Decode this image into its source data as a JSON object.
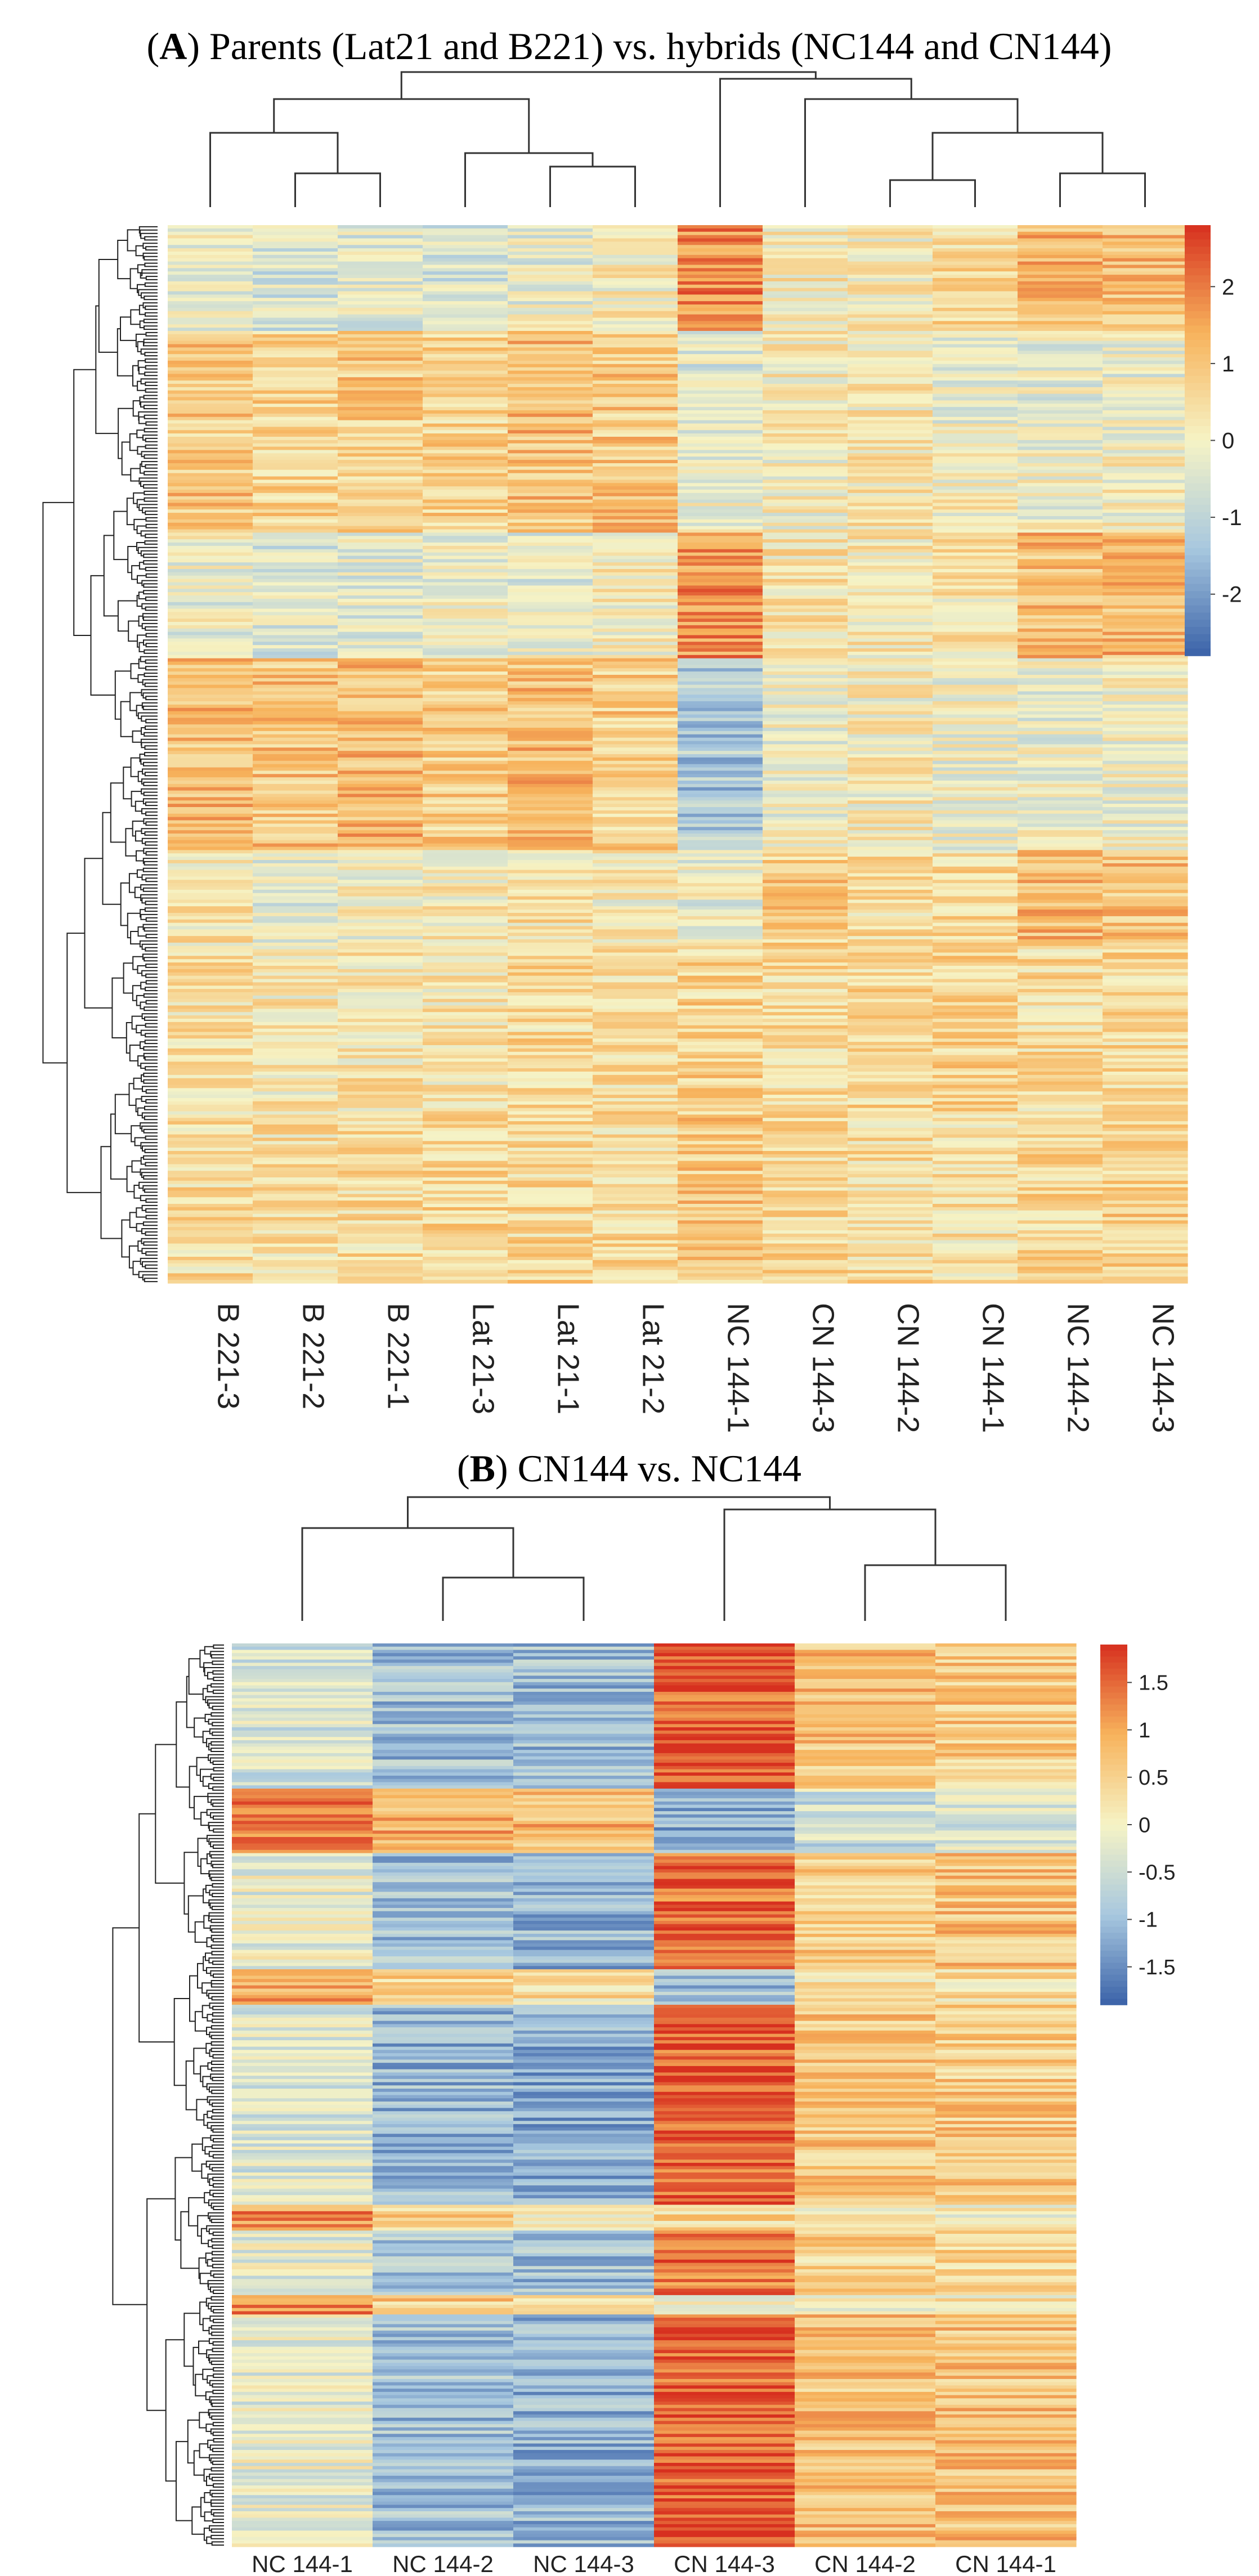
{
  "figure": {
    "panels": [
      {
        "id": "A",
        "title_letter": "A",
        "title_rest": ") Parents (Lat21 and B221) vs. hybrids (NC144 and CN144)",
        "colorbar_ticks": [
          "2",
          "1",
          "0",
          "-1",
          "-2"
        ]
      },
      {
        "id": "B",
        "title_letter": "B",
        "title_rest": ") CN144 vs. NC144",
        "colorbar_ticks": [
          "1.5",
          "1",
          "0.5",
          "0",
          "-0.5",
          "-1",
          "-1.5"
        ]
      }
    ]
  },
  "colors": {
    "low": "#3a62a8",
    "low_mid": "#a8c8df",
    "mid": "#f6f3c5",
    "high_mid": "#f7b35c",
    "high": "#d7301f"
  },
  "chart_data": [
    {
      "type": "heatmap",
      "title": "(A) Parents (Lat21 and B221) vs. hybrids (NC144 and CN144)",
      "columns": [
        "B 221-3",
        "B 221-2",
        "B 221-1",
        "Lat 21-3",
        "Lat 21-1",
        "Lat 21-2",
        "NC 144-1",
        "CN 144-3",
        "CN 144-2",
        "CN 144-1",
        "NC 144-2",
        "NC 144-3"
      ],
      "value_range": [
        -2.8,
        2.8
      ],
      "colorbar_ticks": [
        2,
        1,
        0,
        -1,
        -2
      ],
      "column_dendrogram": "((B 221-3,(B 221-2,B 221-1)),(Lat 21-3,(Lat 21-1,Lat 21-2))),(NC 144-1,(CN 144-3,((CN 144-2,CN 144-1),(NC 144-2,NC 144-3))))",
      "row_blocks": [
        {
          "rows": 0.1,
          "values": [
            -0.3,
            -0.6,
            -0.4,
            -0.5,
            -0.3,
            0.1,
            1.8,
            0.2,
            0.1,
            0.5,
            1.2,
            1.1
          ]
        },
        {
          "rows": 0.1,
          "values": [
            0.9,
            0.8,
            0.9,
            0.7,
            1.1,
            0.9,
            -0.4,
            0.1,
            0.2,
            -0.2,
            -0.3,
            -0.2
          ]
        },
        {
          "rows": 0.09,
          "values": [
            1.0,
            0.7,
            0.8,
            0.8,
            1.0,
            1.0,
            -0.1,
            0.0,
            0.3,
            0.1,
            -0.1,
            0.0
          ]
        },
        {
          "rows": 0.12,
          "values": [
            -0.2,
            -0.5,
            -0.3,
            -0.2,
            -0.3,
            0.1,
            1.7,
            0.3,
            0.2,
            0.3,
            1.1,
            1.2
          ]
        },
        {
          "rows": 0.18,
          "values": [
            1.1,
            1.0,
            1.2,
            0.8,
            1.1,
            0.8,
            -1.3,
            -0.2,
            0.1,
            -0.1,
            -0.2,
            -0.1
          ]
        },
        {
          "rows": 0.09,
          "values": [
            0.3,
            -0.3,
            0.0,
            0.2,
            0.4,
            0.1,
            -0.2,
            0.8,
            0.4,
            0.5,
            1.1,
            1.0
          ]
        },
        {
          "rows": 0.16,
          "values": [
            0.4,
            0.2,
            0.3,
            0.3,
            0.6,
            0.5,
            0.7,
            0.5,
            0.6,
            0.7,
            0.5,
            0.6
          ]
        },
        {
          "rows": 0.16,
          "values": [
            0.5,
            0.4,
            0.5,
            0.7,
            0.6,
            0.5,
            0.9,
            0.6,
            0.5,
            0.4,
            0.6,
            0.8
          ]
        }
      ]
    },
    {
      "type": "heatmap",
      "title": "(B) CN144 vs. NC144",
      "columns": [
        "NC 144-1",
        "NC 144-2",
        "NC 144-3",
        "CN 144-3",
        "CN 144-2",
        "CN 144-1"
      ],
      "value_range": [
        -1.9,
        1.9
      ],
      "colorbar_ticks": [
        1.5,
        1,
        0.5,
        0,
        -0.5,
        -1,
        -1.5
      ],
      "column_dendrogram": "(NC 144-1,(NC 144-2,NC 144-3)),(CN 144-3,(CN 144-2,CN 144-1))",
      "row_blocks": [
        {
          "rows": 0.16,
          "values": [
            -0.4,
            -1.0,
            -1.0,
            1.6,
            0.7,
            0.6
          ]
        },
        {
          "rows": 0.07,
          "values": [
            1.3,
            0.9,
            0.8,
            -1.2,
            -0.5,
            -0.3
          ]
        },
        {
          "rows": 0.13,
          "values": [
            -0.2,
            -1.0,
            -1.1,
            1.5,
            0.6,
            0.7
          ]
        },
        {
          "rows": 0.04,
          "values": [
            1.0,
            0.5,
            0.3,
            -1.0,
            0.2,
            0.3
          ]
        },
        {
          "rows": 0.22,
          "values": [
            -0.3,
            -1.1,
            -1.2,
            1.6,
            0.6,
            0.6
          ]
        },
        {
          "rows": 0.03,
          "values": [
            1.2,
            0.5,
            0.2,
            0.4,
            0.2,
            0.1
          ]
        },
        {
          "rows": 0.07,
          "values": [
            -0.2,
            -0.8,
            -1.0,
            1.4,
            0.5,
            0.5
          ]
        },
        {
          "rows": 0.02,
          "values": [
            1.3,
            0.6,
            0.3,
            0.1,
            0.0,
            0.2
          ]
        },
        {
          "rows": 0.26,
          "values": [
            -0.2,
            -1.0,
            -1.1,
            1.6,
            0.7,
            0.7
          ]
        }
      ]
    }
  ]
}
